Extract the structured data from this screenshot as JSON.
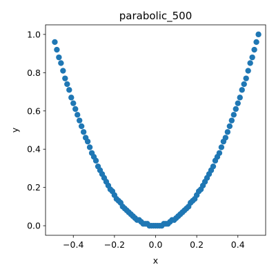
{
  "chart_data": {
    "type": "scatter",
    "title": "parabolic_500",
    "xlabel": "x",
    "ylabel": "y",
    "xlim": [
      -0.535,
      0.535
    ],
    "ylim": [
      -0.05,
      1.05
    ],
    "x_ticks": [
      -0.4,
      -0.2,
      0.0,
      0.2,
      0.4
    ],
    "x_tick_labels": [
      "−0.4",
      "−0.2",
      "0.0",
      "0.2",
      "0.4"
    ],
    "y_ticks": [
      0.0,
      0.2,
      0.4,
      0.6,
      0.8,
      1.0
    ],
    "y_tick_labels": [
      "0.0",
      "0.2",
      "0.4",
      "0.6",
      "0.8",
      "1.0"
    ],
    "grid": false,
    "legend": "none",
    "marker_color": "#1f77b4",
    "series": [
      {
        "points": [
          [
            -0.49,
            0.96
          ],
          [
            -0.48,
            0.92
          ],
          [
            -0.47,
            0.88
          ],
          [
            -0.46,
            0.85
          ],
          [
            -0.45,
            0.81
          ],
          [
            -0.44,
            0.77
          ],
          [
            -0.43,
            0.74
          ],
          [
            -0.42,
            0.71
          ],
          [
            -0.41,
            0.67
          ],
          [
            -0.4,
            0.64
          ],
          [
            -0.39,
            0.61
          ],
          [
            -0.38,
            0.58
          ],
          [
            -0.37,
            0.55
          ],
          [
            -0.36,
            0.52
          ],
          [
            -0.35,
            0.49
          ],
          [
            -0.34,
            0.46
          ],
          [
            -0.33,
            0.44
          ],
          [
            -0.32,
            0.41
          ],
          [
            -0.31,
            0.38
          ],
          [
            -0.3,
            0.36
          ],
          [
            -0.29,
            0.34
          ],
          [
            -0.28,
            0.31
          ],
          [
            -0.27,
            0.29
          ],
          [
            -0.26,
            0.27
          ],
          [
            -0.25,
            0.25
          ],
          [
            -0.24,
            0.23
          ],
          [
            -0.23,
            0.21
          ],
          [
            -0.22,
            0.19
          ],
          [
            -0.21,
            0.18
          ],
          [
            -0.2,
            0.16
          ],
          [
            -0.19,
            0.14
          ],
          [
            -0.18,
            0.13
          ],
          [
            -0.17,
            0.12
          ],
          [
            -0.16,
            0.1
          ],
          [
            -0.15,
            0.09
          ],
          [
            -0.14,
            0.08
          ],
          [
            -0.13,
            0.07
          ],
          [
            -0.12,
            0.06
          ],
          [
            -0.11,
            0.05
          ],
          [
            -0.1,
            0.04
          ],
          [
            -0.09,
            0.03
          ],
          [
            -0.08,
            0.03
          ],
          [
            -0.07,
            0.02
          ],
          [
            -0.06,
            0.01
          ],
          [
            -0.05,
            0.01
          ],
          [
            -0.04,
            0.01
          ],
          [
            -0.03,
            0.0
          ],
          [
            -0.02,
            0.0
          ],
          [
            -0.01,
            0.0
          ],
          [
            0.0,
            0.0
          ],
          [
            0.01,
            0.0
          ],
          [
            0.02,
            0.0
          ],
          [
            0.03,
            0.0
          ],
          [
            0.04,
            0.01
          ],
          [
            0.05,
            0.01
          ],
          [
            0.06,
            0.01
          ],
          [
            0.07,
            0.02
          ],
          [
            0.08,
            0.03
          ],
          [
            0.09,
            0.03
          ],
          [
            0.1,
            0.04
          ],
          [
            0.11,
            0.05
          ],
          [
            0.12,
            0.06
          ],
          [
            0.13,
            0.07
          ],
          [
            0.14,
            0.08
          ],
          [
            0.15,
            0.09
          ],
          [
            0.16,
            0.1
          ],
          [
            0.17,
            0.12
          ],
          [
            0.18,
            0.13
          ],
          [
            0.19,
            0.14
          ],
          [
            0.2,
            0.16
          ],
          [
            0.21,
            0.18
          ],
          [
            0.22,
            0.19
          ],
          [
            0.23,
            0.21
          ],
          [
            0.24,
            0.23
          ],
          [
            0.25,
            0.25
          ],
          [
            0.26,
            0.27
          ],
          [
            0.27,
            0.29
          ],
          [
            0.28,
            0.31
          ],
          [
            0.29,
            0.34
          ],
          [
            0.3,
            0.36
          ],
          [
            0.31,
            0.38
          ],
          [
            0.32,
            0.41
          ],
          [
            0.33,
            0.44
          ],
          [
            0.34,
            0.46
          ],
          [
            0.35,
            0.49
          ],
          [
            0.36,
            0.52
          ],
          [
            0.37,
            0.55
          ],
          [
            0.38,
            0.58
          ],
          [
            0.39,
            0.61
          ],
          [
            0.4,
            0.64
          ],
          [
            0.41,
            0.67
          ],
          [
            0.42,
            0.71
          ],
          [
            0.43,
            0.74
          ],
          [
            0.44,
            0.77
          ],
          [
            0.45,
            0.81
          ],
          [
            0.46,
            0.85
          ],
          [
            0.47,
            0.88
          ],
          [
            0.48,
            0.92
          ],
          [
            0.49,
            0.96
          ],
          [
            0.5,
            1.0
          ]
        ]
      }
    ]
  }
}
